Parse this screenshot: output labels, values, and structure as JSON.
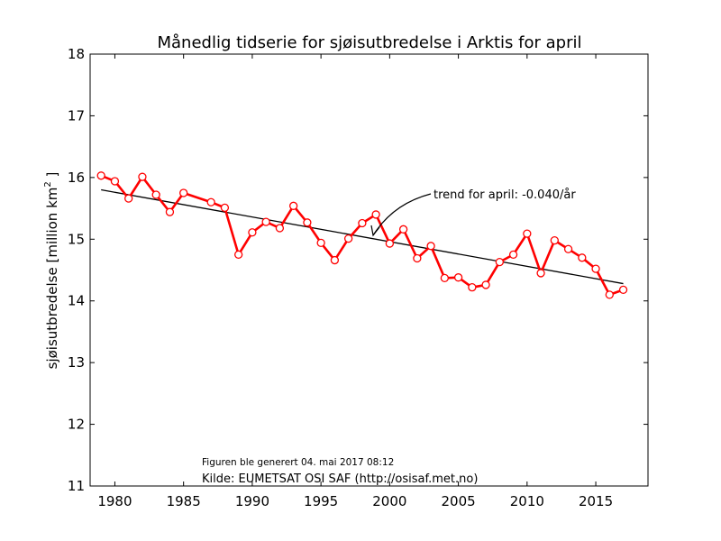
{
  "chart_data": {
    "type": "line",
    "title": "Månedlig tidserie for sjøisutbredelse i Arktis for april",
    "ylabel_main": "sjøisutbredelse [million km",
    "ylabel_sup": "2",
    "ylabel_end": " ]",
    "xlabel": "",
    "xlim": [
      1978.2,
      1818.8
    ],
    "ylim": [
      11,
      18
    ],
    "xticks": [
      1980,
      1985,
      1990,
      1995,
      2000,
      2005,
      2010,
      2015
    ],
    "xtick_labels": [
      "1980",
      "1985",
      "1990",
      "1995",
      "2000",
      "2005",
      "2010",
      "2015"
    ],
    "yticks": [
      11,
      12,
      13,
      14,
      15,
      16,
      17,
      18
    ],
    "ytick_labels": [
      "11",
      "12",
      "13",
      "14",
      "15",
      "16",
      "17",
      "18"
    ],
    "grid": false,
    "series": [
      {
        "color": "#ff0000",
        "marker": "open-circle",
        "x": [
          1979,
          1980,
          1981,
          1982,
          1983,
          1984,
          1985,
          1987,
          1988,
          1989,
          1990,
          1991,
          1992,
          1993,
          1994,
          1995,
          1996,
          1997,
          1998,
          1999,
          2000,
          2001,
          2002,
          2003,
          2004,
          2005,
          2006,
          2007,
          2008,
          2009,
          2010,
          2011,
          2012,
          2013,
          2014,
          2015,
          2016,
          2017
        ],
        "y": [
          16.03,
          15.94,
          15.66,
          16.01,
          15.72,
          15.44,
          15.75,
          15.6,
          15.51,
          14.75,
          15.11,
          15.28,
          15.18,
          15.54,
          15.27,
          14.94,
          14.66,
          15.01,
          15.26,
          15.4,
          14.93,
          15.16,
          14.69,
          14.89,
          14.37,
          14.38,
          14.22,
          14.26,
          14.63,
          14.75,
          15.09,
          14.45,
          14.98,
          14.84,
          14.7,
          14.52,
          14.1,
          14.18
        ]
      }
    ],
    "trend": {
      "color": "#000000",
      "x": [
        1979,
        2017
      ],
      "y": [
        15.8,
        14.28
      ],
      "label": "trend for april: -0.040/år",
      "arrow_target": {
        "x": 1998.5,
        "y": 15.03
      }
    },
    "annotations": {
      "generated": "Figuren ble generert 04. mai 2017 08:12",
      "source": "Kilde: EUMETSAT OSI SAF (http://osisaf.met.no)"
    }
  }
}
